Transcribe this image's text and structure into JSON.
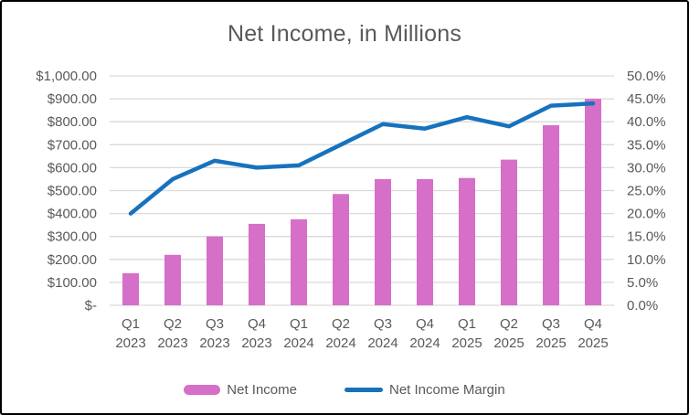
{
  "chart_data": {
    "type": "combo-bar-line",
    "title": "Net Income, in Millions",
    "categories": [
      "Q1 2023",
      "Q2 2023",
      "Q3 2023",
      "Q4 2023",
      "Q1 2024",
      "Q2 2024",
      "Q3 2024",
      "Q4 2024",
      "Q1 2025",
      "Q2 2025",
      "Q3 2025",
      "Q4 2025"
    ],
    "series": [
      {
        "name": "Net Income",
        "type": "bar",
        "axis": "left",
        "color": "#D66FC8",
        "values": [
          140,
          220,
          300,
          355,
          375,
          485,
          550,
          550,
          555,
          635,
          785,
          900
        ]
      },
      {
        "name": "Net Income Margin",
        "type": "line",
        "axis": "right",
        "color": "#1772BD",
        "values": [
          20.0,
          27.5,
          31.5,
          30.0,
          30.5,
          35.0,
          39.5,
          38.5,
          41.0,
          39.0,
          43.5,
          44.0
        ]
      }
    ],
    "left_axis": {
      "min": 0,
      "max": 1000,
      "step": 100,
      "ticks": [
        "$1,000.00",
        "$900.00",
        "$800.00",
        "$700.00",
        "$600.00",
        "$500.00",
        "$400.00",
        "$300.00",
        "$200.00",
        "$100.00",
        "$-"
      ]
    },
    "right_axis": {
      "min": 0,
      "max": 50,
      "step": 5,
      "ticks": [
        "50.0%",
        "45.0%",
        "40.0%",
        "35.0%",
        "30.0%",
        "25.0%",
        "20.0%",
        "15.0%",
        "10.0%",
        "5.0%",
        "0.0%"
      ]
    },
    "grid": true,
    "legend_position": "bottom",
    "colors": {
      "grid": "#D9D9D9",
      "text": "#595959",
      "background": "#FFFFFF",
      "frame_border": "#000000"
    }
  }
}
